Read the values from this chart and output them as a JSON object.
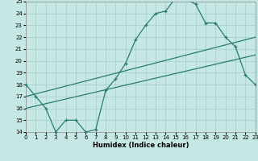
{
  "xlabel": "Humidex (Indice chaleur)",
  "xlim": [
    0,
    23
  ],
  "ylim": [
    14,
    25
  ],
  "xticks": [
    0,
    1,
    2,
    3,
    4,
    5,
    6,
    7,
    8,
    9,
    10,
    11,
    12,
    13,
    14,
    15,
    16,
    17,
    18,
    19,
    20,
    21,
    22,
    23
  ],
  "yticks": [
    14,
    15,
    16,
    17,
    18,
    19,
    20,
    21,
    22,
    23,
    24,
    25
  ],
  "bg_color": "#c5e8e5",
  "line_color": "#2a7a72",
  "grid_color": "#a5ccc8",
  "line1_x": [
    0,
    1,
    2,
    3,
    4,
    5,
    6,
    7,
    8,
    9,
    10,
    11,
    12,
    13,
    14,
    15,
    16,
    17,
    18,
    19,
    20,
    21,
    22,
    23
  ],
  "line1_y": [
    18.0,
    17.0,
    16.0,
    14.0,
    15.0,
    15.0,
    14.0,
    14.2,
    17.5,
    18.5,
    19.8,
    21.8,
    23.0,
    24.0,
    24.2,
    25.3,
    25.2,
    24.8,
    23.2,
    23.2,
    22.0,
    21.2,
    18.8,
    18.0
  ],
  "line2_x": [
    0,
    23
  ],
  "line2_y": [
    18.0,
    18.0
  ],
  "line2_end_y": 18.3,
  "line3_x": [
    0,
    23
  ],
  "line3_y": [
    16.0,
    20.5
  ],
  "line4_x": [
    0,
    23
  ],
  "line4_y": [
    17.0,
    22.0
  ]
}
